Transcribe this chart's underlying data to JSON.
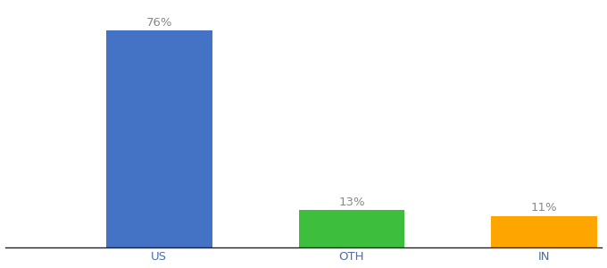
{
  "categories": [
    "US",
    "OTH",
    "IN"
  ],
  "values": [
    76,
    13,
    11
  ],
  "bar_colors": [
    "#4472C4",
    "#3DBE3D",
    "#FFA500"
  ],
  "labels": [
    "76%",
    "13%",
    "11%"
  ],
  "ylim": [
    0,
    85
  ],
  "bar_width": 0.55,
  "background_color": "#ffffff",
  "label_fontsize": 9.5,
  "tick_fontsize": 9.5,
  "tick_color": "#4B6FA8",
  "label_color": "#888888",
  "xlim": [
    -0.3,
    2.8
  ],
  "x_positions": [
    0.5,
    1.5,
    2.5
  ]
}
